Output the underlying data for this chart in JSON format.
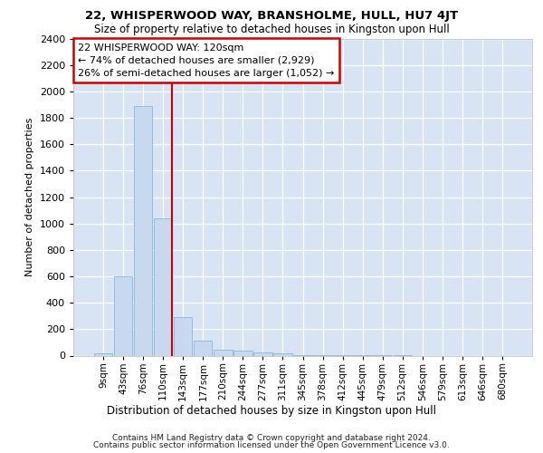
{
  "title1": "22, WHISPERWOOD WAY, BRANSHOLME, HULL, HU7 4JT",
  "title2": "Size of property relative to detached houses in Kingston upon Hull",
  "xlabel": "Distribution of detached houses by size in Kingston upon Hull",
  "ylabel": "Number of detached properties",
  "footer1": "Contains HM Land Registry data © Crown copyright and database right 2024.",
  "footer2": "Contains public sector information licensed under the Open Government Licence v3.0.",
  "bar_labels": [
    "9sqm",
    "43sqm",
    "76sqm",
    "110sqm",
    "143sqm",
    "177sqm",
    "210sqm",
    "244sqm",
    "277sqm",
    "311sqm",
    "345sqm",
    "378sqm",
    "412sqm",
    "445sqm",
    "479sqm",
    "512sqm",
    "546sqm",
    "579sqm",
    "613sqm",
    "646sqm",
    "680sqm"
  ],
  "bar_values": [
    20,
    600,
    1890,
    1040,
    290,
    110,
    48,
    35,
    25,
    15,
    5,
    3,
    2,
    2,
    1,
    1,
    0,
    0,
    0,
    0,
    0
  ],
  "bar_color": "#c8d8ee",
  "bar_edge_color": "#7aaed6",
  "background_color": "#d8e4f3",
  "grid_color": "#ffffff",
  "red_line_color": "#cc0000",
  "red_line_bar_idx": 3,
  "annotation_line1": "22 WHISPERWOOD WAY: 120sqm",
  "annotation_line2": "← 74% of detached houses are smaller (2,929)",
  "annotation_line3": "26% of semi-detached houses are larger (1,052) →",
  "annotation_edge_color": "#cc0000",
  "ylim_max": 2400,
  "ytick_step": 200
}
